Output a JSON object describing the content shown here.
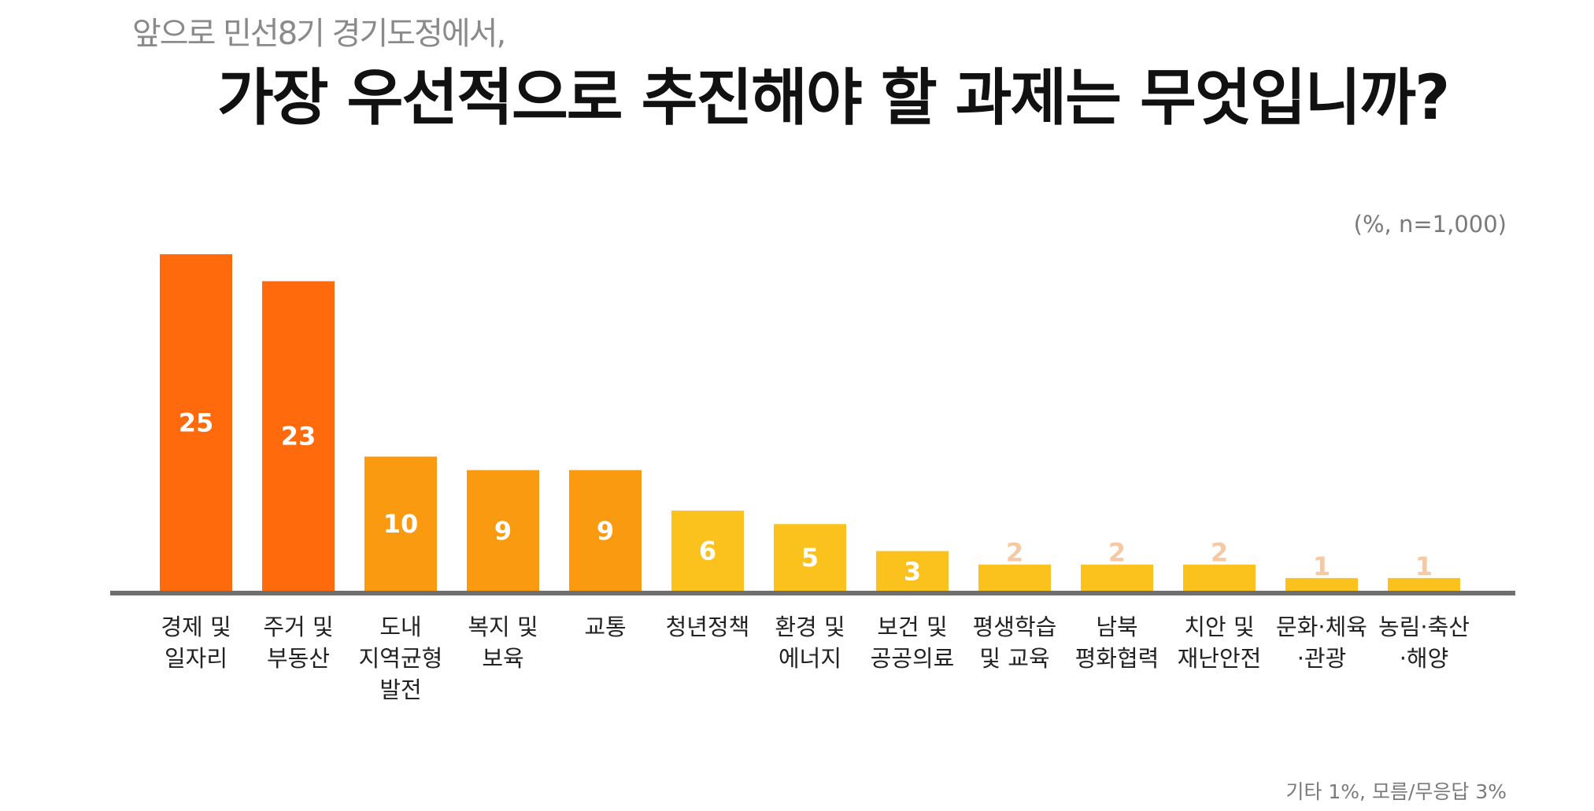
{
  "header": {
    "subtitle": "앞으로 민선8기 경기도정에서,",
    "title": "가장 우선적으로 추진해야 할 과제는 무엇입니까?"
  },
  "unit_label": "(%, n=1,000)",
  "footnote": "기타 1%, 모름/무응답 3%",
  "colors": {
    "top": "#FF6A0C",
    "mid": "#FA9A10",
    "low": "#FBC21E",
    "baseline": "#6f6f6f",
    "value_text_light": "#ffffff",
    "value_text_faint": "#F7C9A3"
  },
  "chart_data": {
    "type": "bar",
    "title": "가장 우선적으로 추진해야 할 과제는 무엇입니까?",
    "subtitle": "앞으로 민선8기 경기도정에서,",
    "unit": "(%, n=1,000)",
    "ylim": [
      0,
      26
    ],
    "grid": false,
    "categories": [
      [
        "경제 및",
        "일자리"
      ],
      [
        "주거 및",
        "부동산"
      ],
      [
        "도내",
        "지역균형",
        "발전"
      ],
      [
        "복지 및",
        "보육"
      ],
      [
        "교통"
      ],
      [
        "청년정책"
      ],
      [
        "환경 및",
        "에너지"
      ],
      [
        "보건 및",
        "공공의료"
      ],
      [
        "평생학습",
        "및 교육"
      ],
      [
        "남북",
        "평화협력"
      ],
      [
        "치안 및",
        "재난안전"
      ],
      [
        "문화·체육",
        "·관광"
      ],
      [
        "농림·축산",
        "·해양"
      ]
    ],
    "values": [
      25,
      23,
      10,
      9,
      9,
      6,
      5,
      3,
      2,
      2,
      2,
      1,
      1
    ],
    "tiers": [
      "top",
      "top",
      "mid",
      "mid",
      "mid",
      "low",
      "low",
      "low",
      "low",
      "low",
      "low",
      "low",
      "low"
    ]
  }
}
